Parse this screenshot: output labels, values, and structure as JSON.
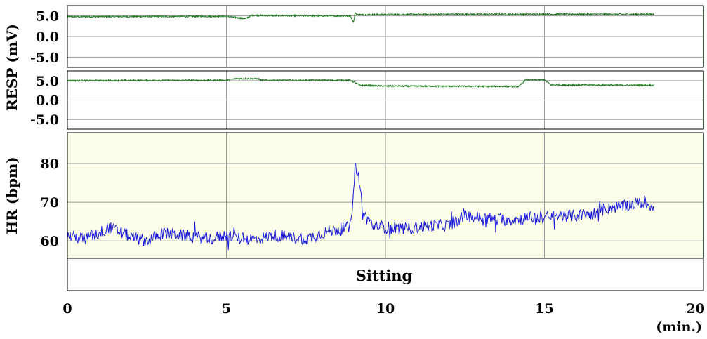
{
  "chart_data": {
    "type": "line",
    "x_unit": "(min.)",
    "xlim": [
      0,
      20
    ],
    "x_ticks": [
      0,
      5,
      10,
      15,
      20
    ],
    "condition_label": "Sitting",
    "panels": [
      {
        "ylabel": "RESP (mV)",
        "ylim": [
          -7.5,
          7.5
        ],
        "y_ticks": [
          5.0,
          0.0,
          -5.0
        ],
        "y_tick_labels": [
          "5.0",
          "0.0",
          "-5.0"
        ],
        "color": "#1f7a1f",
        "background": "#ffffff",
        "series": {
          "x": [
            0,
            5,
            5.6,
            5.8,
            6.0,
            8.9,
            9.0,
            9.05,
            9.1,
            12.0,
            18.45
          ],
          "y": [
            4.8,
            4.9,
            4.3,
            5.2,
            5.1,
            5.0,
            3.4,
            5.8,
            5.3,
            5.4,
            5.4
          ]
        }
      },
      {
        "ylabel": "",
        "ylim": [
          -7.5,
          7.5
        ],
        "y_ticks": [
          5.0,
          0.0,
          -5.0
        ],
        "y_tick_labels": [
          "5.0",
          "0.0",
          "-5.0"
        ],
        "color": "#1f7a1f",
        "background": "#ffffff",
        "series": {
          "x": [
            0,
            5,
            5.3,
            6.0,
            6.1,
            8.9,
            9.2,
            10.0,
            14.2,
            14.4,
            15.0,
            15.2,
            18.45
          ],
          "y": [
            5.0,
            5.1,
            5.5,
            5.5,
            5.1,
            5.1,
            3.8,
            3.6,
            3.5,
            5.2,
            5.2,
            3.9,
            3.8
          ]
        }
      },
      {
        "ylabel": "HR (bpm)",
        "ylim": [
          55.5,
          88
        ],
        "y_ticks": [
          80,
          70,
          60
        ],
        "y_tick_labels": [
          "80",
          "70",
          "60"
        ],
        "color": "#1a1ad9",
        "background": "#fbfee9",
        "series": {
          "x": [
            0,
            0.5,
            1.0,
            1.3,
            1.6,
            2.0,
            2.5,
            3.0,
            3.5,
            4.0,
            4.5,
            5.0,
            5.5,
            6.0,
            6.5,
            7.0,
            7.5,
            8.0,
            8.5,
            8.9,
            9.05,
            9.15,
            9.3,
            9.6,
            10.0,
            10.5,
            11.0,
            11.5,
            12.0,
            12.5,
            13.0,
            13.5,
            14.0,
            14.5,
            15.0,
            15.5,
            16.0,
            16.5,
            17.0,
            17.5,
            18.0,
            18.45
          ],
          "y": [
            61.5,
            60.5,
            62.0,
            63.5,
            62.5,
            61.0,
            60.0,
            62.0,
            61.5,
            61.0,
            60.5,
            61.5,
            60.5,
            60.5,
            61.5,
            61.0,
            60.5,
            62.0,
            63.0,
            63.5,
            79.5,
            77.0,
            67.0,
            64.0,
            63.5,
            63.0,
            63.5,
            64.0,
            64.0,
            66.5,
            66.0,
            65.5,
            65.5,
            66.0,
            66.0,
            66.5,
            66.5,
            67.0,
            68.5,
            69.0,
            70.0,
            69.0
          ]
        }
      }
    ]
  }
}
